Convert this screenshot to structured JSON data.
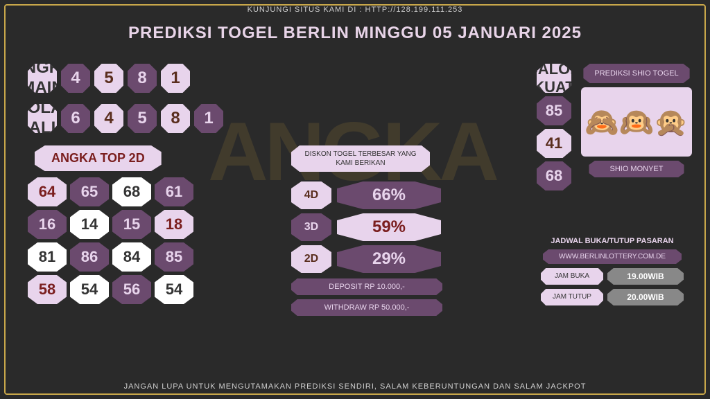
{
  "topbar": "KUNJUNGI SITUS KAMI DI : HTTP://128.199.111.253",
  "title": "PREDIKSI TOGEL BERLIN MINGGU 05 JANUARI 2025",
  "watermark": "ANGKA",
  "angka_main": {
    "label": "ANGKA MAIN",
    "nums": [
      "4",
      "5",
      "8",
      "1"
    ],
    "styles": [
      "dark",
      "light",
      "dark",
      "light"
    ]
  },
  "angka_bbfs": {
    "label": "ANGKA BBFS (BOLAK BALIK FULLSET )",
    "nums": [
      "6",
      "4",
      "5",
      "8",
      "1"
    ],
    "styles": [
      "dark",
      "light",
      "dark",
      "light",
      "dark"
    ]
  },
  "top2d": {
    "title": "ANGKA TOP 2D",
    "cells": [
      {
        "v": "64",
        "s": "light"
      },
      {
        "v": "65",
        "s": "dark"
      },
      {
        "v": "68",
        "s": "wh"
      },
      {
        "v": "61",
        "s": "dark"
      },
      {
        "v": "16",
        "s": "dark"
      },
      {
        "v": "14",
        "s": "wh"
      },
      {
        "v": "15",
        "s": "dark"
      },
      {
        "v": "18",
        "s": "light"
      },
      {
        "v": "81",
        "s": "wh"
      },
      {
        "v": "86",
        "s": "dark"
      },
      {
        "v": "84",
        "s": "wh"
      },
      {
        "v": "85",
        "s": "dark"
      },
      {
        "v": "58",
        "s": "light"
      },
      {
        "v": "54",
        "s": "wh"
      },
      {
        "v": "56",
        "s": "dark"
      },
      {
        "v": "54",
        "s": "wh"
      }
    ]
  },
  "diskon": {
    "title": "DISKON TOGEL TERBESAR YANG KAMI BERIKAN",
    "d4d": {
      "lbl": "4D",
      "val": "66%",
      "ls": "light",
      "vs": "dark"
    },
    "d3d": {
      "lbl": "3D",
      "val": "59%",
      "ls": "dark",
      "vs": "light"
    },
    "d2d": {
      "lbl": "2D",
      "val": "29%",
      "ls": "light",
      "vs": "dark"
    },
    "deposit": "DEPOSIT RP 10.000,-",
    "withdraw": "WITHDRAW RP 50.000,-"
  },
  "calon": {
    "label": "CALON KUAT",
    "nums": [
      "85",
      "41",
      "68"
    ],
    "styles": [
      "dark",
      "light",
      "dark"
    ]
  },
  "shio": {
    "title": "PREDIKSI SHIO TOGEL",
    "emoji": "🙈🙉🙊",
    "name": "SHIO MONYET"
  },
  "jadwal": {
    "title": "JADWAL BUKA/TUTUP PASARAN",
    "web": "WWW.BERLINLOTTERY.COM.DE",
    "buka": {
      "lbl": "JAM BUKA",
      "val": "19.00WIB"
    },
    "tutup": {
      "lbl": "JAM TUTUP",
      "val": "20.00WIB"
    }
  },
  "footer": "JANGAN LUPA UNTUK MENGUTAMAKAN PREDIKSI SENDIRI, SALAM KEBERUNTUNGAN DAN SALAM JACKPOT",
  "colors": {
    "bg": "#2a2a2a",
    "border": "#c9a74a",
    "dark": "#6b4a6e",
    "light": "#e8d4ec",
    "red": "#7a1e1e"
  }
}
